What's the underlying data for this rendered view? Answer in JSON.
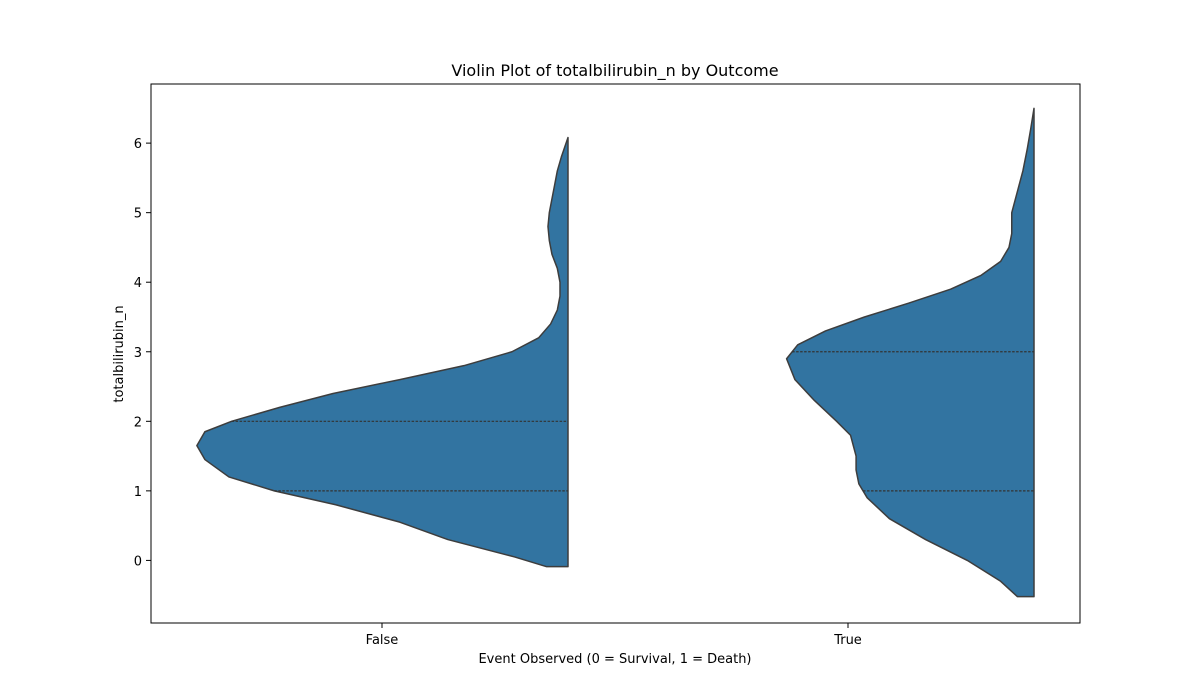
{
  "chart_data": {
    "type": "violin",
    "title": "Violin Plot of totalbilirubin_n by Outcome",
    "xlabel": "Event Observed (0 = Survival, 1 = Death)",
    "ylabel": "totalbilirubin_n",
    "categories": [
      "False",
      "True"
    ],
    "yticks": [
      0,
      1,
      2,
      3,
      4,
      5,
      6
    ],
    "ylim": [
      -0.9,
      6.85
    ],
    "grid": false,
    "legend": "none",
    "violin_color": "#3274a1",
    "edge_color": "#3d3d3d",
    "violins": [
      {
        "category": "False",
        "side": "left",
        "max_half_width": 0.8,
        "quartile_lines": [
          1,
          2
        ],
        "profile": [
          [
            -0.09,
            0.08
          ],
          [
            0.05,
            0.2
          ],
          [
            0.3,
            0.45
          ],
          [
            0.55,
            0.63
          ],
          [
            0.8,
            0.87
          ],
          [
            1.0,
            1.1
          ],
          [
            1.2,
            1.27
          ],
          [
            1.45,
            1.36
          ],
          [
            1.65,
            1.39
          ],
          [
            1.85,
            1.36
          ],
          [
            2.0,
            1.26
          ],
          [
            2.2,
            1.08
          ],
          [
            2.4,
            0.88
          ],
          [
            2.6,
            0.63
          ],
          [
            2.8,
            0.39
          ],
          [
            3.0,
            0.21
          ],
          [
            3.2,
            0.11
          ],
          [
            3.4,
            0.065
          ],
          [
            3.6,
            0.04
          ],
          [
            3.8,
            0.03
          ],
          [
            4.0,
            0.03
          ],
          [
            4.2,
            0.04
          ],
          [
            4.4,
            0.06
          ],
          [
            4.6,
            0.07
          ],
          [
            4.8,
            0.075
          ],
          [
            5.0,
            0.07
          ],
          [
            5.2,
            0.06
          ],
          [
            5.4,
            0.05
          ],
          [
            5.6,
            0.04
          ],
          [
            5.8,
            0.025
          ],
          [
            6.08,
            0.0
          ]
        ]
      },
      {
        "category": "True",
        "side": "left",
        "max_half_width": 0.8,
        "quartile_lines": [
          1,
          3
        ],
        "profile": [
          [
            -0.52,
            0.06
          ],
          [
            -0.3,
            0.12
          ],
          [
            0.0,
            0.24
          ],
          [
            0.3,
            0.39
          ],
          [
            0.6,
            0.52
          ],
          [
            0.9,
            0.6
          ],
          [
            1.1,
            0.63
          ],
          [
            1.3,
            0.64
          ],
          [
            1.5,
            0.64
          ],
          [
            1.8,
            0.66
          ],
          [
            2.0,
            0.71
          ],
          [
            2.3,
            0.79
          ],
          [
            2.6,
            0.86
          ],
          [
            2.9,
            0.89
          ],
          [
            3.1,
            0.85
          ],
          [
            3.3,
            0.75
          ],
          [
            3.5,
            0.61
          ],
          [
            3.7,
            0.45
          ],
          [
            3.9,
            0.3
          ],
          [
            4.1,
            0.19
          ],
          [
            4.3,
            0.12
          ],
          [
            4.5,
            0.09
          ],
          [
            4.7,
            0.08
          ],
          [
            5.0,
            0.08
          ],
          [
            5.3,
            0.06
          ],
          [
            5.6,
            0.04
          ],
          [
            5.9,
            0.025
          ],
          [
            6.2,
            0.012
          ],
          [
            6.5,
            0.0
          ]
        ]
      }
    ]
  }
}
